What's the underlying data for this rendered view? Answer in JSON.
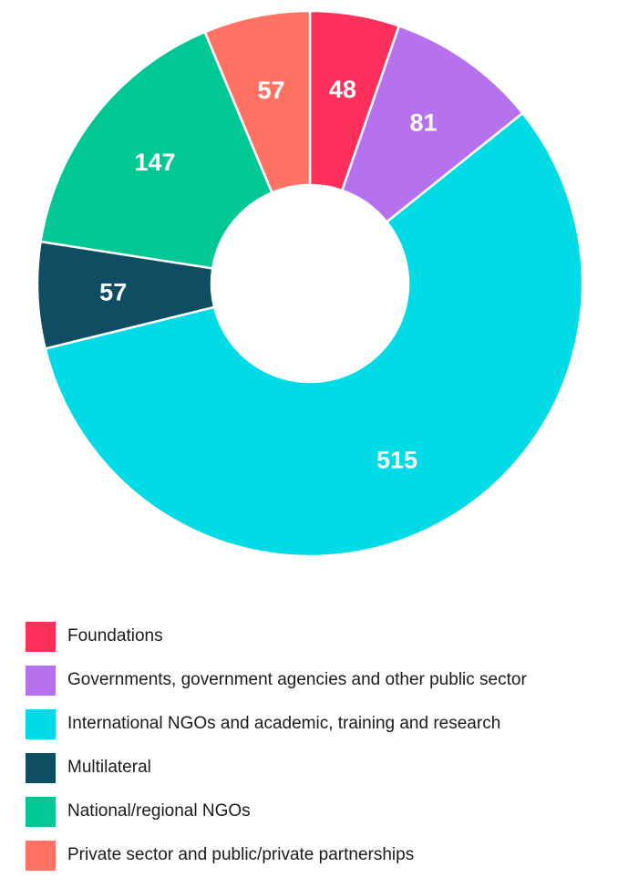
{
  "chart_data": {
    "type": "pie",
    "donut": true,
    "legend_position": "bottom",
    "series": [
      {
        "name": "Foundations",
        "value": 48,
        "color": "#ff2f5c"
      },
      {
        "name": "Governments, government agencies and other public sector",
        "value": 81,
        "color": "#b672ee"
      },
      {
        "name": "International NGOs and academic, training and research",
        "value": 515,
        "color": "#00dbe6"
      },
      {
        "name": "Multilateral",
        "value": 57,
        "color": "#0f4d63"
      },
      {
        "name": "National/regional NGOs",
        "value": 147,
        "color": "#00c793"
      },
      {
        "name": "Private sector and public/private partnerships",
        "value": 57,
        "color": "#ff7264"
      }
    ]
  }
}
